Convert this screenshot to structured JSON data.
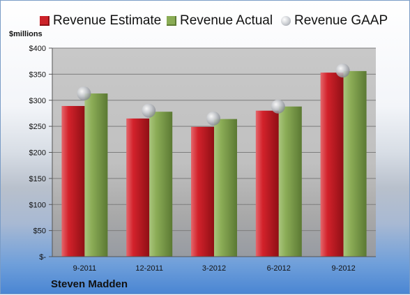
{
  "units_label": "$millions",
  "company_name": "Steven Madden",
  "chart_data": {
    "type": "bar",
    "categories": [
      "9-2011",
      "12-2011",
      "3-2012",
      "6-2012",
      "9-2012"
    ],
    "series": [
      {
        "name": "Revenue Estimate",
        "kind": "bar",
        "color": "#cc2229",
        "values": [
          289,
          265,
          249,
          280,
          353
        ]
      },
      {
        "name": "Revenue Actual",
        "kind": "bar",
        "color": "#8aac55",
        "values": [
          313,
          278,
          264,
          288,
          356
        ]
      },
      {
        "name": "Revenue GAAP",
        "kind": "marker",
        "color": "#b9bcc2",
        "values": [
          313,
          280,
          265,
          288,
          357
        ]
      }
    ],
    "ylim": [
      0,
      400
    ],
    "yticks": [
      0,
      50,
      100,
      150,
      200,
      250,
      300,
      350,
      400
    ],
    "ytick_labels": [
      "$-",
      "$50",
      "$100",
      "$150",
      "$200",
      "$250",
      "$300",
      "$350",
      "$400"
    ],
    "grid": true,
    "legend_position": "top"
  }
}
